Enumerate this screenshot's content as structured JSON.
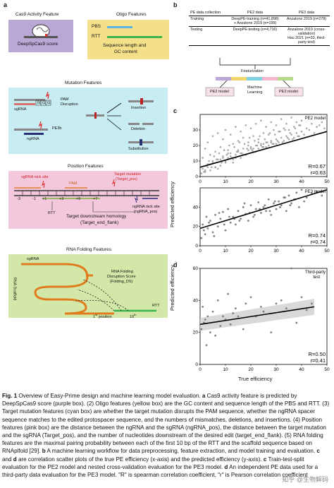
{
  "panel_labels": {
    "a": "a",
    "b": "b",
    "c": "c",
    "d": "d"
  },
  "panel_a": {
    "cas9": {
      "title": "Cas9  Activity Feature",
      "score_label": "DeepSpCas9 score"
    },
    "oligo": {
      "title": "Oligo Features",
      "pbs": "PBS",
      "rtt": "RTT",
      "desc_line1": "Sequence length and",
      "desc_line2": "GC content"
    },
    "mutation": {
      "title": "Mutation Features",
      "pam1": "PAM",
      "pam2": "Disruption",
      "sgrna": "sgRNA",
      "ngg": [
        "N",
        "G",
        "G"
      ],
      "pe3b": "PE3b",
      "ngrna": "ngRNA",
      "insertion": "Insertion",
      "deletion": "Deletion",
      "substitution": "Substitution"
    },
    "position": {
      "title": "Position Features",
      "nick": "sgRNA nick site",
      "pam": "PAM",
      "target1": "Target mutation",
      "target2": "(Target_pos)",
      "ticks": [
        "-3",
        "-1",
        "+1",
        "+3",
        "+5",
        "+7"
      ],
      "rtt": "RTT",
      "ngnick1": "ngRNA nick site",
      "ngnick2": "(ngRNA_pos)",
      "downstream1": "Target downstream homology",
      "downstream2": "(Target_end_flank)"
    },
    "rna": {
      "title": "RNA Folding Features",
      "sgrna": "sgRNA",
      "scaffold": "RNA Scaffold",
      "disrupt1": "RNA Folding",
      "disrupt2": "Disruption Score",
      "disrupt3": "(Folding_DS)",
      "rtt": "RTT",
      "first": "1",
      "first_suffix": "st",
      "first_rest": " position",
      "tenth": "10",
      "tenth_suffix": "th"
    }
  },
  "panel_b": {
    "headers": [
      "PE data collection",
      "PE2 data",
      "PE3 data"
    ],
    "training_label": "Training",
    "training_pe2_line1": "DeepPE-training (n=41,898)",
    "training_pe2_line2": "+ Anzalone 2019 (n=199)",
    "training_pe3": "Anzalone 2019 (n=278)",
    "testing_label": "Testing",
    "testing_pe2": "DeepPE-testing (n=4,716)",
    "testing_pe3_line1": "Anzalone 2019 (cross-validation)",
    "testing_pe3_line2": "Hsu 2021 (n=33, third-party test)",
    "featurization": "Featurization",
    "pe2_model": "PE2 model",
    "ml1": "Machine",
    "ml2": "Learning",
    "pe3_model": "PE3 model",
    "bar_colors": [
      "#b9a7d6",
      "#f2d66b",
      "#7fd0e0",
      "#f4b6cf",
      "#b4d98a"
    ]
  },
  "chart_data": [
    {
      "type": "scatter",
      "panel": "c",
      "tag": "PE2 model",
      "xlim": [
        0,
        50
      ],
      "ylim": [
        0,
        40
      ],
      "xticks": [
        "0",
        "10",
        "20",
        "30",
        "40",
        "50"
      ],
      "yticks": [
        "0",
        "10",
        "20",
        "30"
      ],
      "fit": [
        [
          0,
          6
        ],
        [
          50,
          29
        ]
      ],
      "R": "R=0.67",
      "r": "r=0.63",
      "x": [
        0.5,
        1,
        1,
        2,
        2,
        3,
        3,
        4,
        4,
        5,
        5,
        6,
        6,
        7,
        7,
        8,
        8,
        9,
        9,
        10,
        10,
        11,
        11,
        12,
        12,
        13,
        13,
        14,
        14,
        15,
        15,
        16,
        16,
        17,
        17,
        18,
        18,
        19,
        19,
        20,
        20,
        21,
        21,
        22,
        22,
        23,
        23,
        24,
        24,
        25,
        25,
        26,
        26,
        27,
        27,
        28,
        28,
        29,
        29,
        30,
        30,
        31,
        31,
        32,
        32,
        33,
        33,
        34,
        34,
        35,
        35,
        36,
        36,
        37,
        37,
        38,
        38,
        39,
        39,
        40,
        40,
        41,
        42,
        43,
        44,
        45,
        46,
        47,
        48,
        49,
        1.5,
        2.5,
        3.5,
        4.5,
        5.5,
        6.5,
        7.5,
        8.5,
        9.5,
        10.5,
        11.5,
        12.5,
        13.5,
        14.5,
        15.5,
        16.5,
        17.5,
        18.5,
        19.5,
        20.5,
        21.5,
        22.5,
        23.5,
        24.5,
        25.5,
        26.5,
        27.5,
        28.5,
        29.5,
        30.5,
        31.5,
        32.5,
        33.5,
        34.5,
        35.5,
        36.5,
        37.5,
        38.5,
        39.5,
        2,
        4,
        6,
        8,
        10,
        12,
        14,
        16,
        18,
        20,
        22,
        24,
        26,
        28,
        30,
        3,
        5,
        7,
        9,
        11,
        13,
        15,
        17,
        19,
        21,
        23,
        25
      ],
      "y": [
        2,
        5,
        12,
        3,
        18,
        8,
        22,
        4,
        14,
        9,
        26,
        6,
        16,
        11,
        28,
        7,
        19,
        13,
        24,
        10,
        30,
        12,
        17,
        15,
        27,
        9,
        21,
        14,
        32,
        16,
        23,
        12,
        29,
        18,
        25,
        14,
        33,
        17,
        22,
        19,
        31,
        16,
        26,
        20,
        34,
        18,
        24,
        21,
        36,
        19,
        28,
        22,
        32,
        20,
        27,
        23,
        35,
        21,
        30,
        24,
        33,
        22,
        29,
        25,
        37,
        23,
        31,
        26,
        34,
        24,
        30,
        27,
        38,
        25,
        32,
        28,
        35,
        26,
        33,
        29,
        36,
        27,
        31,
        30,
        34,
        28,
        32,
        33,
        35,
        31,
        3,
        7,
        10,
        6,
        13,
        11,
        15,
        9,
        17,
        14,
        20,
        12,
        19,
        16,
        22,
        15,
        21,
        18,
        25,
        17,
        23,
        20,
        26,
        19,
        24,
        22,
        28,
        21,
        27,
        23,
        29,
        22,
        30,
        25,
        28,
        24,
        31,
        26,
        33,
        4,
        8,
        6,
        11,
        9,
        13,
        12,
        15,
        14,
        18,
        16,
        20,
        19,
        22,
        21,
        6,
        10,
        5,
        12,
        15,
        11,
        17,
        14,
        20,
        18,
        22,
        21
      ]
    },
    {
      "type": "scatter",
      "panel": "c",
      "tag": "PE3 model",
      "xlim": [
        0,
        50
      ],
      "ylim": [
        0,
        60
      ],
      "xticks": [
        "0",
        "10",
        "20",
        "30",
        "40",
        "50"
      ],
      "yticks": [
        "0",
        "20",
        "40"
      ],
      "fit": [
        [
          0,
          18
        ],
        [
          50,
          58
        ]
      ],
      "R": "R=0.74",
      "r": "r=0.74",
      "x": [
        0.5,
        1,
        2,
        2.5,
        3,
        4,
        5,
        6,
        7,
        8,
        9,
        10,
        11,
        12,
        13,
        14,
        15,
        16,
        17,
        18,
        19,
        20,
        21,
        22,
        23,
        24,
        25,
        26,
        27,
        28,
        29,
        30,
        31,
        32,
        33,
        34,
        35,
        36,
        37,
        38,
        39,
        40,
        41,
        42,
        44,
        46,
        48,
        1.5,
        3.5,
        5.5,
        7.5,
        9.5,
        11.5,
        13.5,
        15.5,
        17.5,
        19.5,
        21.5,
        23.5,
        25.5,
        27.5,
        29.5,
        31.5,
        33.5,
        35.5,
        37.5
      ],
      "y": [
        8,
        22,
        12,
        30,
        18,
        26,
        14,
        32,
        20,
        28,
        35,
        16,
        38,
        24,
        30,
        22,
        36,
        28,
        40,
        33,
        26,
        42,
        30,
        38,
        45,
        34,
        40,
        36,
        48,
        32,
        44,
        38,
        46,
        42,
        50,
        36,
        52,
        44,
        48,
        55,
        40,
        58,
        46,
        50,
        54,
        56,
        52,
        16,
        24,
        10,
        34,
        22,
        30,
        28,
        26,
        44,
        34,
        32,
        38,
        42,
        36,
        46,
        40,
        50,
        42,
        48
      ]
    },
    {
      "type": "scatter",
      "panel": "d",
      "tag": "Third-party",
      "tag2": "test",
      "xlim": [
        0,
        50
      ],
      "ylim": [
        0,
        60
      ],
      "xticks": [
        "0",
        "10",
        "20",
        "30",
        "40",
        "50"
      ],
      "yticks": [
        "0",
        "20",
        "40",
        "60"
      ],
      "fit": [
        [
          0,
          25
        ],
        [
          45,
          36
        ]
      ],
      "R": "R=0.50",
      "r": "r=0.41",
      "x": [
        0.5,
        1,
        1.5,
        2,
        2.5,
        3,
        4,
        5,
        6,
        7,
        8,
        9,
        10,
        11,
        12,
        13,
        14,
        15,
        17,
        18,
        20,
        22,
        24,
        25,
        28,
        30,
        32,
        34,
        36,
        38,
        40,
        42,
        44
      ],
      "y": [
        22,
        36,
        26,
        28,
        12,
        30,
        20,
        33,
        18,
        40,
        24,
        30,
        28,
        44,
        25,
        32,
        35,
        30,
        22,
        38,
        42,
        30,
        36,
        33,
        20,
        38,
        40,
        35,
        60,
        26,
        42,
        34,
        38
      ]
    }
  ],
  "axis_labels": {
    "c_y": "Predicted efficiency",
    "d_y": "Predicted efficiency",
    "d_x": "True efficiency"
  },
  "caption": {
    "fig": "Fig. 1",
    "text1": " Overview of Easy-Prime design and machine learning model evaluation. ",
    "a": "a",
    "text2": " Cas9 activity feature is predicted by DeepSpCas9 score (purple box). (2) Oligo features (yellow box) are the GC content and sequence length of the PBS and RTT. (3) Target mutation features (cyan box) are whether the target mutation disrupts the PAM sequence, whether the ngRNA spacer sequence matches to the edited protospacer sequence, and the numbers of mismatches, deletions, and insertions. (4) Position features (pink box) are the distance between the ngRNA and the sgRNA (ngRNA_pos), the distance between the target mutation and the sgRNA (Target_pos), and the number of nucleotides downstream of the desired edit (target_end_flank). (5) RNA folding features are the maximal pairing probability between each of the first 10 bp of the RTT and the scaffold sequence based on RNAplfold [29]. ",
    "b": "b",
    "text3": " A machine learning workflow for data preprocessing, feature extraction, and model training and evaluation. ",
    "c": "c",
    "and": " and ",
    "d": "d",
    "text4": " are correlation scatter plots of the true PE efficiency (x-axis) and the predicted efficiency (y-axis). ",
    "c2": "c",
    "text5": " Train-test-split evaluation for the PE2 model and nested cross-validation evaluation for the PE3 model. ",
    "d2": "d",
    "text6": " An independent PE data used for a third-party data evaluation for the PE3 model. \"R\" is spearman correlation coefficient, \"r\" is Pearson correlation coefficient"
  },
  "watermark": "知乎 @生物解码"
}
